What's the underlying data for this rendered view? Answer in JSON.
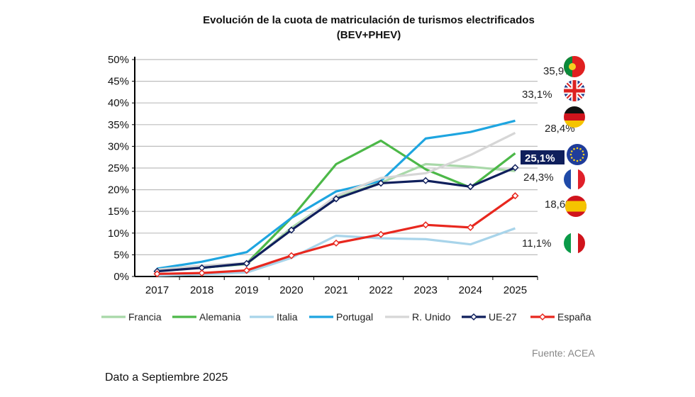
{
  "chart_data": {
    "type": "line",
    "title": "Evolución de la cuota de matriculación de turismos electrificados",
    "subtitle": "(BEV+PHEV)",
    "categories": [
      "2017",
      "2018",
      "2019",
      "2020",
      "2021",
      "2022",
      "2023",
      "2024",
      "2025"
    ],
    "ylim": [
      0,
      50
    ],
    "yticks": [
      "0%",
      "5%",
      "10%",
      "15%",
      "20%",
      "25%",
      "30%",
      "35%",
      "40%",
      "45%",
      "50%"
    ],
    "grid": true,
    "legend_position": "bottom",
    "series": [
      {
        "name": "Francia",
        "color": "#a8d8a8",
        "values": [
          1.5,
          2.1,
          2.8,
          11.2,
          18.3,
          21.6,
          25.9,
          25.3,
          24.3
        ],
        "end_label": "24,3%",
        "flag": "france-flag"
      },
      {
        "name": "Alemania",
        "color": "#4cb848",
        "values": [
          1.6,
          2.0,
          3.0,
          13.5,
          25.9,
          31.3,
          24.7,
          20.5,
          28.4
        ],
        "end_label": "28,4%",
        "flag": "germany-flag"
      },
      {
        "name": "Italia",
        "color": "#a8d4ea",
        "values": [
          0.2,
          0.5,
          0.9,
          4.3,
          9.4,
          8.8,
          8.6,
          7.4,
          11.1
        ],
        "end_label": "11,1%",
        "flag": "italy-flag"
      },
      {
        "name": "Portugal",
        "color": "#1ea5e0",
        "values": [
          1.8,
          3.4,
          5.6,
          13.5,
          19.6,
          22.0,
          31.8,
          33.3,
          35.9
        ],
        "end_label": "35,9%",
        "flag": "portugal-flag"
      },
      {
        "name": "R. Unido",
        "color": "#d6d6d6",
        "values": [
          1.6,
          2.5,
          3.1,
          10.7,
          18.6,
          22.7,
          23.8,
          28.0,
          33.1
        ],
        "end_label": "33,1%",
        "flag": "uk-flag"
      },
      {
        "name": "UE-27",
        "color": "#0f1f5c",
        "values": [
          1.2,
          2.0,
          3.0,
          10.7,
          17.9,
          21.5,
          22.1,
          20.7,
          25.1
        ],
        "end_label": "25,1%",
        "flag": "eu-flag",
        "markers": true
      },
      {
        "name": "España",
        "color": "#e8271e",
        "values": [
          0.6,
          0.8,
          1.4,
          4.8,
          7.7,
          9.7,
          11.9,
          11.3,
          18.6
        ],
        "end_label": "18,6%",
        "flag": "spain-flag",
        "markers": true
      }
    ]
  },
  "source": "Fuente: ACEA",
  "note": "Dato a Septiembre 2025"
}
